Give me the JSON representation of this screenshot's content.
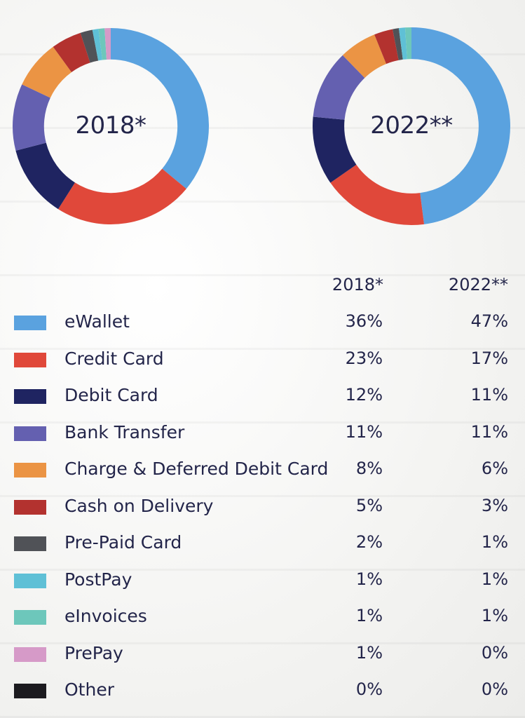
{
  "chart_data": [
    {
      "type": "pie",
      "title": "2018*",
      "categories": [
        "eWallet",
        "Credit Card",
        "Debit Card",
        "Bank Transfer",
        "Charge & Deferred Debit Card",
        "Cash on Delivery",
        "Pre-Paid Card",
        "PostPay",
        "eInvoices",
        "PrePay",
        "Other"
      ],
      "values": [
        36,
        23,
        12,
        11,
        8,
        5,
        2,
        1,
        1,
        1,
        0
      ]
    },
    {
      "type": "pie",
      "title": "2022**",
      "categories": [
        "eWallet",
        "Credit Card",
        "Debit Card",
        "Bank Transfer",
        "Charge & Deferred Debit Card",
        "Cash on Delivery",
        "Pre-Paid Card",
        "PostPay",
        "eInvoices",
        "PrePay",
        "Other"
      ],
      "values": [
        47,
        17,
        11,
        11,
        6,
        3,
        1,
        1,
        1,
        0,
        0
      ]
    }
  ],
  "legend": {
    "col1": "2018*",
    "col2": "2022**",
    "items": [
      {
        "label": "eWallet",
        "v1": "36%",
        "v2": "47%",
        "color": "#5aa2df"
      },
      {
        "label": "Credit Card",
        "v1": "23%",
        "v2": "17%",
        "color": "#e0483a"
      },
      {
        "label": "Debit Card",
        "v1": "12%",
        "v2": "11%",
        "color": "#1f2461"
      },
      {
        "label": "Bank Transfer",
        "v1": "11%",
        "v2": "11%",
        "color": "#6460b0"
      },
      {
        "label": "Charge & Deferred Debit Card",
        "v1": "8%",
        "v2": "6%",
        "color": "#eb9444"
      },
      {
        "label": "Cash on Delivery",
        "v1": "5%",
        "v2": "3%",
        "color": "#b3322f"
      },
      {
        "label": "Pre-Paid Card",
        "v1": "2%",
        "v2": "1%",
        "color": "#505257"
      },
      {
        "label": "PostPay",
        "v1": "1%",
        "v2": "1%",
        "color": "#5fc0d6"
      },
      {
        "label": "eInvoices",
        "v1": "1%",
        "v2": "1%",
        "color": "#6dc7bb"
      },
      {
        "label": "PrePay",
        "v1": "1%",
        "v2": "0%",
        "color": "#d69ac8"
      },
      {
        "label": "Other",
        "v1": "0%",
        "v2": "0%",
        "color": "#1c1b1f"
      }
    ]
  }
}
